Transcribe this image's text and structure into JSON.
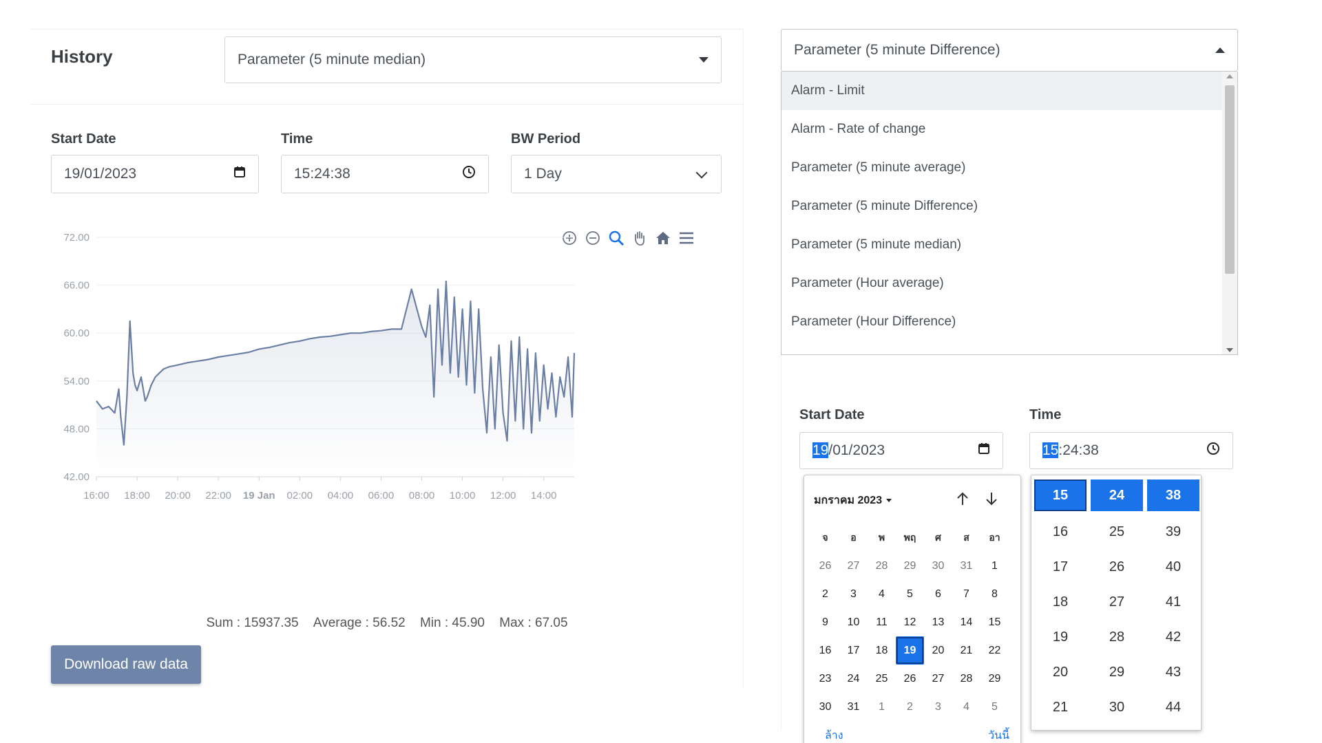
{
  "history": {
    "title": "History",
    "parameter_select": "Parameter (5 minute median)"
  },
  "filters": {
    "start_date_label": "Start Date",
    "start_date_value": "19/01/2023",
    "time_label": "Time",
    "time_value": "15:24:38",
    "bw_period_label": "BW Period",
    "bw_period_value": "1 Day"
  },
  "toolbar": {
    "icons": [
      "zoom-in-icon",
      "zoom-out-icon",
      "zoom-select-icon",
      "pan-icon",
      "home-icon",
      "menu-icon"
    ]
  },
  "chart_data": {
    "type": "area",
    "y_ticks": [
      "72.00",
      "66.00",
      "60.00",
      "54.00",
      "48.00",
      "42.00"
    ],
    "ylim": [
      42,
      72
    ],
    "x_ticks": [
      "16:00",
      "18:00",
      "20:00",
      "22:00",
      "19 Jan",
      "02:00",
      "04:00",
      "06:00",
      "08:00",
      "10:00",
      "12:00",
      "14:00"
    ],
    "x_hours": [
      0,
      2,
      4,
      6,
      8,
      10,
      12,
      14,
      16,
      18,
      20,
      22
    ],
    "xlim_hours": [
      0,
      23.5
    ],
    "line_color": "#6a7fa3",
    "series": [
      {
        "x": [
          0,
          0.3,
          0.6,
          0.9,
          1.1,
          1.2,
          1.35,
          1.5,
          1.65,
          1.8,
          1.9,
          2.0,
          2.2,
          2.4,
          2.5,
          2.7,
          2.9,
          3.1,
          3.3,
          3.6,
          4.0,
          4.5,
          5.0,
          5.5,
          6.0,
          6.5,
          7.0,
          7.5,
          8.0,
          8.5,
          9.0,
          9.5,
          10.0,
          10.5,
          11.0,
          11.5,
          12.0,
          12.5,
          13.0,
          13.5,
          14.0,
          14.5,
          15.0,
          15.5,
          16.0,
          16.2,
          16.4,
          16.6,
          16.8,
          17.0,
          17.2,
          17.4,
          17.6,
          17.8,
          18.0,
          18.2,
          18.4,
          18.6,
          18.8,
          19.0,
          19.2,
          19.4,
          19.6,
          19.8,
          20.0,
          20.2,
          20.4,
          20.6,
          20.8,
          21.0,
          21.2,
          21.4,
          21.6,
          21.8,
          22.0,
          22.2,
          22.4,
          22.6,
          22.8,
          23.0,
          23.2,
          23.4,
          23.5
        ],
        "y": [
          51.5,
          50.5,
          50.8,
          50.0,
          53.0,
          49.5,
          46.0,
          52.0,
          61.5,
          55.0,
          53.5,
          52.8,
          54.5,
          51.5,
          52.0,
          53.5,
          54.5,
          55.0,
          55.5,
          55.8,
          56.0,
          56.3,
          56.5,
          56.7,
          57.0,
          57.2,
          57.4,
          57.6,
          58.0,
          58.2,
          58.5,
          58.8,
          59.0,
          59.3,
          59.5,
          59.6,
          59.8,
          60.0,
          60.0,
          60.2,
          60.3,
          60.5,
          60.5,
          65.5,
          60.8,
          59.5,
          63.5,
          52.0,
          65.5,
          56.0,
          66.5,
          55.0,
          64.5,
          54.5,
          63.0,
          53.5,
          64.0,
          52.5,
          63.0,
          53.0,
          47.5,
          57.0,
          48.0,
          58.5,
          50.0,
          46.5,
          59.0,
          49.0,
          59.5,
          48.0,
          58.0,
          47.5,
          57.5,
          49.0,
          56.0,
          50.5,
          55.0,
          49.5,
          54.5,
          52.0,
          57.0,
          49.5,
          57.5
        ]
      }
    ]
  },
  "stats": {
    "sum": "Sum : 15937.35",
    "average": "Average : 56.52",
    "min": "Min : 45.90",
    "max": "Max : 67.05"
  },
  "download_label": "Download raw data",
  "right": {
    "select_value": "Parameter (5 minute Difference)",
    "options": [
      "Alarm - Limit",
      "Alarm - Rate of change",
      "Parameter (5 minute average)",
      "Parameter (5 minute Difference)",
      "Parameter (5 minute median)",
      "Parameter (Hour average)",
      "Parameter (Hour Difference)"
    ],
    "start_date_label": "Start Date",
    "date_sel": "19",
    "date_rest": "/01/2023",
    "time_label": "Time",
    "time_sel": "15",
    "time_rest": ":24:38"
  },
  "calendar": {
    "month": "มกราคม 2023",
    "weekdays": [
      "จ",
      "อ",
      "พ",
      "พฤ",
      "ศ",
      "ส",
      "อา"
    ],
    "days": [
      [
        "26",
        "27",
        "28",
        "29",
        "30",
        "31",
        "1"
      ],
      [
        "2",
        "3",
        "4",
        "5",
        "6",
        "7",
        "8"
      ],
      [
        "9",
        "10",
        "11",
        "12",
        "13",
        "14",
        "15"
      ],
      [
        "16",
        "17",
        "18",
        "19",
        "20",
        "21",
        "22"
      ],
      [
        "23",
        "24",
        "25",
        "26",
        "27",
        "28",
        "29"
      ],
      [
        "30",
        "31",
        "1",
        "2",
        "3",
        "4",
        "5"
      ]
    ],
    "selected": "19",
    "clear": "ล้าง",
    "today": "วันนี้"
  },
  "time_picker": {
    "hours": [
      "15",
      "16",
      "17",
      "18",
      "19",
      "20",
      "21"
    ],
    "minutes": [
      "24",
      "25",
      "26",
      "27",
      "28",
      "29",
      "30"
    ],
    "seconds": [
      "38",
      "39",
      "40",
      "41",
      "42",
      "43",
      "44"
    ]
  }
}
